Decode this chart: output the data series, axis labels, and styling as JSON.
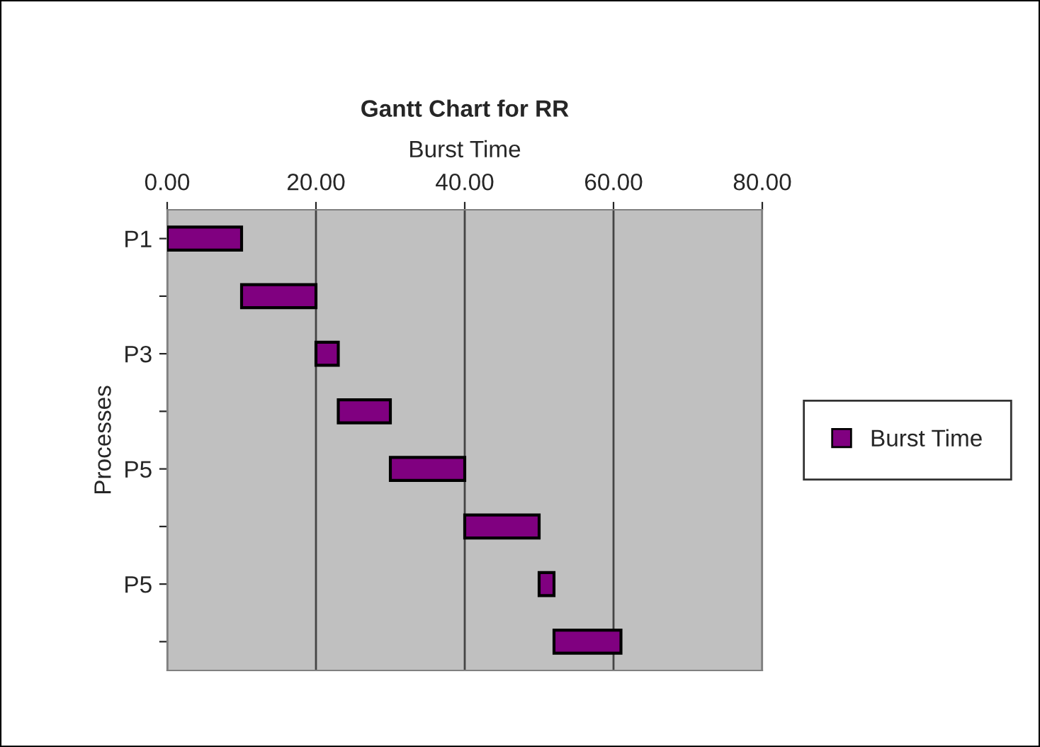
{
  "chart_data": {
    "type": "bar",
    "orientation": "horizontal",
    "title": "Gantt Chart for RR",
    "xlabel": "Burst Time",
    "ylabel": "Processes",
    "categories": [
      "P1",
      null,
      "P3",
      null,
      "P5",
      null,
      "P5",
      null
    ],
    "series": [
      {
        "name": "Burst Time",
        "color": "#800080",
        "base": [
          0,
          10,
          20,
          23,
          30,
          40,
          50,
          52
        ],
        "values": [
          10,
          10,
          3,
          7,
          10,
          10,
          2,
          9
        ]
      }
    ],
    "xlim": [
      0,
      80
    ],
    "xticks": [
      {
        "value": 0,
        "label": "0.00"
      },
      {
        "value": 20,
        "label": "20.00"
      },
      {
        "value": 40,
        "label": "40.00"
      },
      {
        "value": 60,
        "label": "60.00"
      },
      {
        "value": 80,
        "label": "80.00"
      }
    ],
    "grid": "x",
    "legend": "right"
  }
}
